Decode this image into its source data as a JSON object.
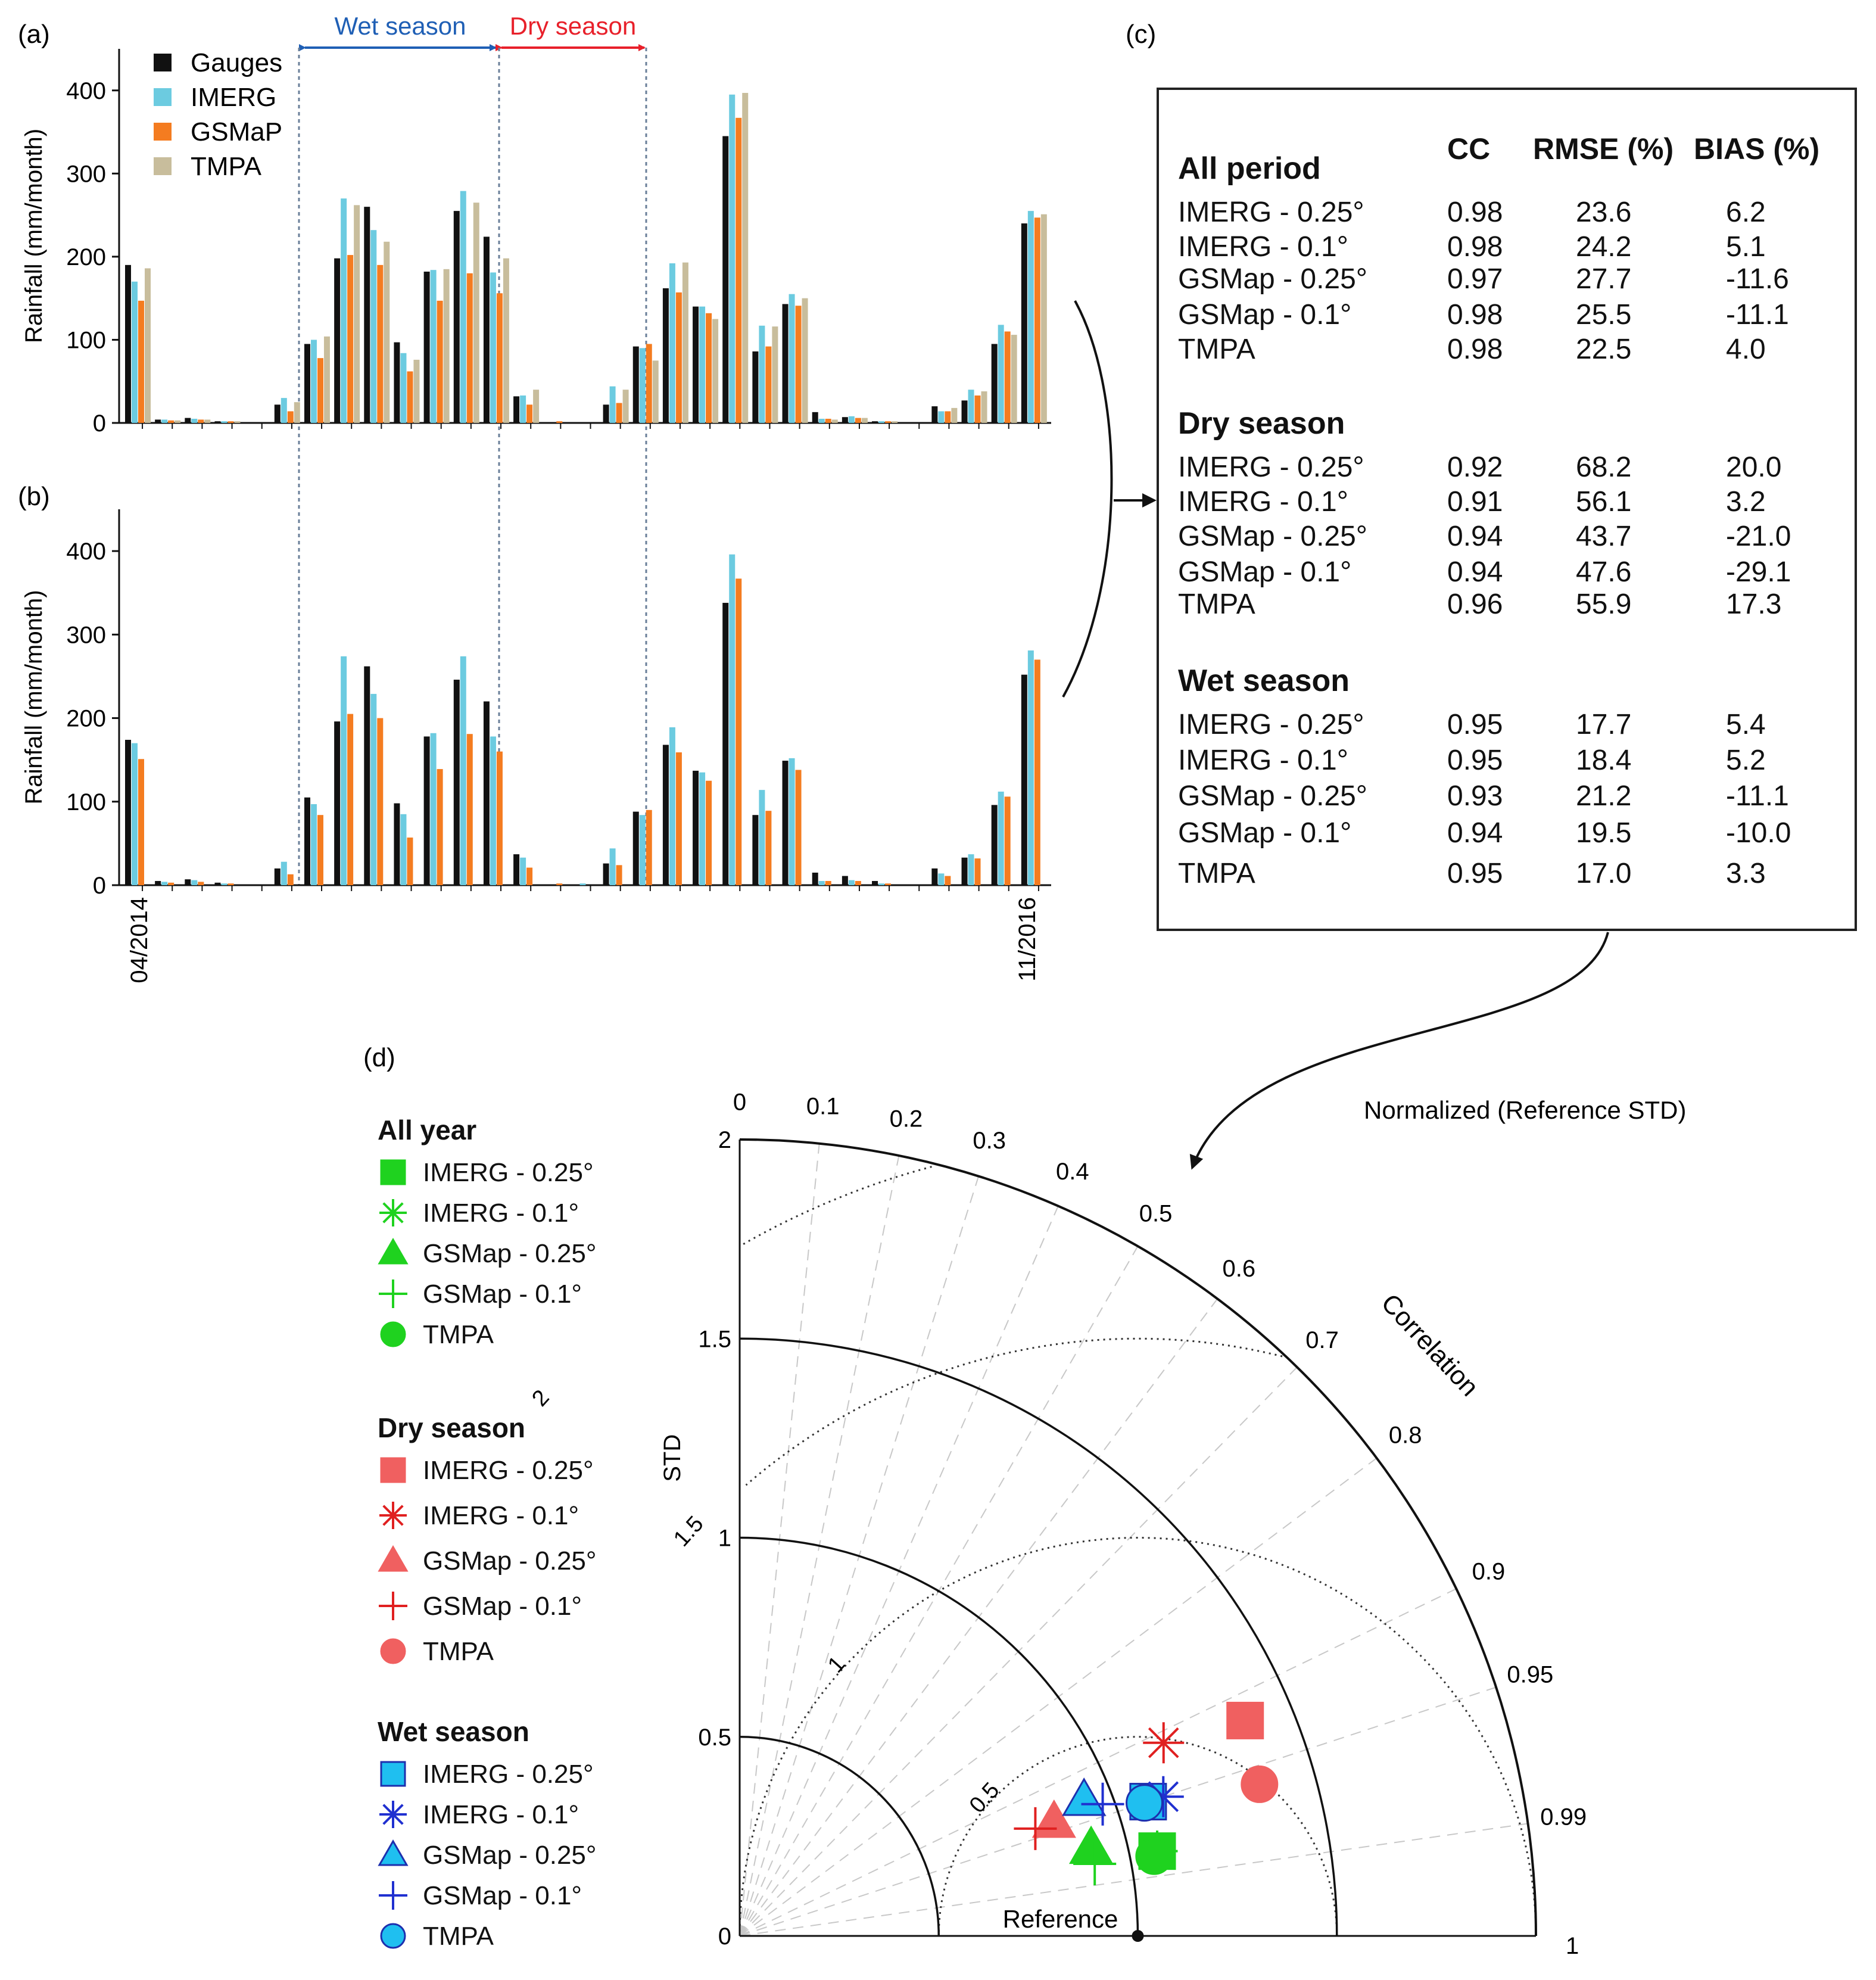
{
  "panels": {
    "a": "(a)",
    "b": "(b)",
    "c": "(c)",
    "d": "(d)"
  },
  "season_labels": {
    "wet": "Wet season",
    "dry": "Dry season"
  },
  "colors": {
    "gauges": "#111111",
    "imerg": "#6ccbe0",
    "gsmap": "#f47c20",
    "tmpa": "#c8bd9c",
    "wet": "#1f5fb5",
    "dry": "#e8202a",
    "all_year_marker": "#1fd21f",
    "dry_marker": "#f06060",
    "wet_marker_fill": "#1fbff0",
    "wet_marker_line": "#2030d0"
  },
  "chart_data": [
    {
      "id": "a",
      "type": "bar",
      "ylabel": "Rainfall (mm/month)",
      "ylim": [
        0,
        450
      ],
      "yticks": [
        0,
        100,
        200,
        300,
        400
      ],
      "legend_placement": "top-left",
      "series": [
        {
          "name": "Gauges",
          "values": [
            190,
            4,
            6,
            2,
            0,
            22,
            95,
            198,
            260,
            97,
            182,
            255,
            224,
            32,
            0,
            0,
            22,
            92,
            162,
            140,
            345,
            86,
            143,
            13,
            7,
            2,
            0,
            20,
            27,
            95,
            240
          ]
        },
        {
          "name": "IMERG",
          "values": [
            170,
            4,
            5,
            2,
            0,
            30,
            100,
            270,
            232,
            84,
            184,
            279,
            181,
            33,
            0,
            0,
            44,
            90,
            192,
            140,
            395,
            117,
            155,
            5,
            8,
            2,
            0,
            14,
            40,
            118,
            255
          ]
        },
        {
          "name": "GSMaP",
          "values": [
            147,
            3,
            4,
            2,
            0,
            14,
            78,
            202,
            190,
            62,
            147,
            180,
            156,
            22,
            2,
            0,
            24,
            95,
            157,
            132,
            367,
            92,
            141,
            5,
            6,
            2,
            0,
            14,
            33,
            110,
            247
          ]
        },
        {
          "name": "TMPA",
          "values": [
            186,
            3,
            4,
            2,
            0,
            25,
            104,
            262,
            218,
            76,
            185,
            265,
            198,
            40,
            0,
            0,
            40,
            75,
            193,
            125,
            397,
            116,
            150,
            4,
            6,
            2,
            0,
            18,
            38,
            106,
            251
          ]
        }
      ]
    },
    {
      "id": "b",
      "type": "bar",
      "ylabel": "Rainfall (mm/month)",
      "ylim": [
        0,
        450
      ],
      "yticks": [
        0,
        100,
        200,
        300,
        400
      ],
      "x_first": "04/2014",
      "x_last": "11/2016",
      "series": [
        {
          "name": "Gauges",
          "values": [
            174,
            5,
            7,
            3,
            0,
            20,
            105,
            196,
            262,
            98,
            178,
            246,
            220,
            37,
            0,
            0,
            26,
            88,
            168,
            137,
            338,
            84,
            149,
            15,
            11,
            5,
            0,
            20,
            33,
            96,
            252
          ]
        },
        {
          "name": "IMERG",
          "values": [
            170,
            4,
            6,
            2,
            0,
            28,
            97,
            274,
            229,
            85,
            182,
            274,
            178,
            33,
            0,
            2,
            44,
            84,
            189,
            135,
            396,
            114,
            152,
            5,
            6,
            2,
            0,
            14,
            37,
            112,
            281
          ]
        },
        {
          "name": "GSMaP",
          "values": [
            151,
            3,
            4,
            2,
            0,
            13,
            84,
            205,
            200,
            57,
            139,
            181,
            160,
            21,
            2,
            0,
            24,
            90,
            159,
            125,
            367,
            89,
            138,
            5,
            5,
            2,
            0,
            11,
            32,
            106,
            270
          ]
        }
      ]
    },
    {
      "id": "d",
      "type": "scatter",
      "subtype": "taylor",
      "ylabel": "STD",
      "arc_label": "Correlation",
      "std_max": 2,
      "std_ticks": [
        "0",
        "0.5",
        "1",
        "1.5",
        "2"
      ],
      "xtick_right": "1",
      "correlation_ticks": [
        0,
        0.1,
        0.2,
        0.3,
        0.4,
        0.5,
        0.6,
        0.7,
        0.8,
        0.9,
        0.95,
        0.99
      ],
      "rms_contours": [
        0.5,
        1,
        1.5,
        2
      ],
      "reference_label": "Reference",
      "reference_std": 1,
      "header_note": "Normalized (Reference STD)",
      "groups": [
        {
          "title": "All year",
          "items": [
            {
              "label": "IMERG - 0.25°",
              "marker": "square",
              "std": 1.07,
              "cc": 0.98
            },
            {
              "label": "IMERG - 0.1°",
              "marker": "asterisk",
              "std": 1.07,
              "cc": 0.98
            },
            {
              "label": "GSMap - 0.25°",
              "marker": "triangle",
              "std": 0.91,
              "cc": 0.97
            },
            {
              "label": "GSMap - 0.1°",
              "marker": "plus",
              "std": 0.91,
              "cc": 0.98
            },
            {
              "label": "TMPA",
              "marker": "circle",
              "std": 1.06,
              "cc": 0.982
            }
          ]
        },
        {
          "title": "Dry season",
          "items": [
            {
              "label": "IMERG - 0.25°",
              "marker": "square",
              "std": 1.38,
              "cc": 0.92
            },
            {
              "label": "IMERG - 0.1°",
              "marker": "asterisk",
              "std": 1.17,
              "cc": 0.91
            },
            {
              "label": "GSMap - 0.25°",
              "marker": "triangle",
              "std": 0.84,
              "cc": 0.94
            },
            {
              "label": "GSMap - 0.1°",
              "marker": "plus",
              "std": 0.79,
              "cc": 0.94
            },
            {
              "label": "TMPA",
              "marker": "circle",
              "std": 1.36,
              "cc": 0.96
            }
          ]
        },
        {
          "title": "Wet season",
          "items": [
            {
              "label": "IMERG - 0.25°",
              "marker": "square",
              "std": 1.08,
              "cc": 0.95
            },
            {
              "label": "IMERG - 0.1°",
              "marker": "asterisk",
              "std": 1.12,
              "cc": 0.95
            },
            {
              "label": "GSMap - 0.25°",
              "marker": "triangle",
              "std": 0.93,
              "cc": 0.93
            },
            {
              "label": "GSMap - 0.1°",
              "marker": "plus",
              "std": 0.97,
              "cc": 0.94
            },
            {
              "label": "TMPA",
              "marker": "circle",
              "std": 1.07,
              "cc": 0.95
            }
          ]
        }
      ]
    }
  ],
  "stats_table": {
    "headers": {
      "cc": "CC",
      "rmse": "RMSE (%)",
      "bias": "BIAS (%)"
    },
    "sections": [
      {
        "title": "All period",
        "rows": [
          {
            "name": "IMERG - 0.25°",
            "cc": "0.98",
            "rmse": "23.6",
            "bias": "6.2"
          },
          {
            "name": "IMERG - 0.1°",
            "cc": "0.98",
            "rmse": "24.2",
            "bias": "5.1"
          },
          {
            "name": "GSMap - 0.25°",
            "cc": "0.97",
            "rmse": "27.7",
            "bias": "-11.6"
          },
          {
            "name": "GSMap - 0.1°",
            "cc": "0.98",
            "rmse": "25.5",
            "bias": "-11.1"
          },
          {
            "name": "TMPA",
            "cc": "0.98",
            "rmse": "22.5",
            "bias": "4.0"
          }
        ]
      },
      {
        "title": "Dry season",
        "rows": [
          {
            "name": "IMERG - 0.25°",
            "cc": "0.92",
            "rmse": "68.2",
            "bias": "20.0"
          },
          {
            "name": "IMERG - 0.1°",
            "cc": "0.91",
            "rmse": "56.1",
            "bias": "3.2"
          },
          {
            "name": "GSMap - 0.25°",
            "cc": "0.94",
            "rmse": "43.7",
            "bias": "-21.0"
          },
          {
            "name": "GSMap - 0.1°",
            "cc": "0.94",
            "rmse": "47.6",
            "bias": "-29.1"
          },
          {
            "name": "TMPA",
            "cc": "0.96",
            "rmse": "55.9",
            "bias": "17.3"
          }
        ]
      },
      {
        "title": "Wet season",
        "rows": [
          {
            "name": "IMERG - 0.25°",
            "cc": "0.95",
            "rmse": "17.7",
            "bias": "5.4"
          },
          {
            "name": "IMERG - 0.1°",
            "cc": "0.95",
            "rmse": "18.4",
            "bias": "5.2"
          },
          {
            "name": "GSMap - 0.25°",
            "cc": "0.93",
            "rmse": "21.2",
            "bias": "-11.1"
          },
          {
            "name": "GSMap - 0.1°",
            "cc": "0.94",
            "rmse": "19.5",
            "bias": "-10.0"
          },
          {
            "name": "TMPA",
            "cc": "0.95",
            "rmse": "17.0",
            "bias": "3.3"
          }
        ]
      }
    ]
  }
}
